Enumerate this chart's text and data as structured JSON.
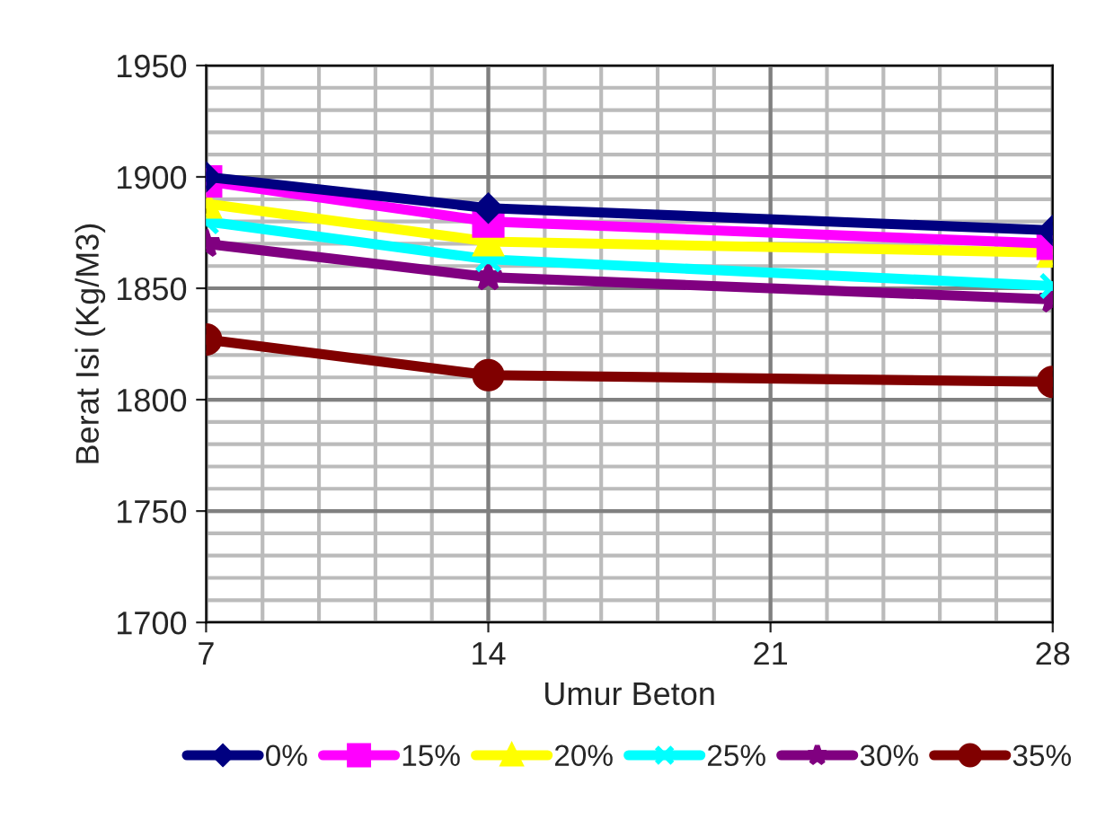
{
  "chart_data": {
    "type": "line",
    "xlabel": "Umur Beton",
    "ylabel": "Berat Isi (Kg/M3)",
    "x": [
      7,
      14,
      28
    ],
    "xlim": [
      7,
      28
    ],
    "xticks": [
      7,
      14,
      21,
      28
    ],
    "ylim": [
      1700,
      1950
    ],
    "yticks": [
      1700,
      1750,
      1800,
      1850,
      1900,
      1950
    ],
    "grid": true,
    "legend": "bottom",
    "series": [
      {
        "name": "0%",
        "color": "#000080",
        "marker": "diamond",
        "values": [
          1900,
          1886,
          1876
        ]
      },
      {
        "name": "15%",
        "color": "#ff00ff",
        "marker": "square",
        "values": [
          1898,
          1880,
          1870
        ]
      },
      {
        "name": "20%",
        "color": "#ffff00",
        "marker": "triangle",
        "values": [
          1888,
          1871,
          1866
        ]
      },
      {
        "name": "25%",
        "color": "#00ffff",
        "marker": "cross",
        "values": [
          1880,
          1863,
          1851
        ]
      },
      {
        "name": "30%",
        "color": "#800080",
        "marker": "star",
        "values": [
          1870,
          1855,
          1845
        ]
      },
      {
        "name": "35%",
        "color": "#800000",
        "marker": "circle",
        "values": [
          1827,
          1811,
          1808
        ]
      }
    ]
  }
}
